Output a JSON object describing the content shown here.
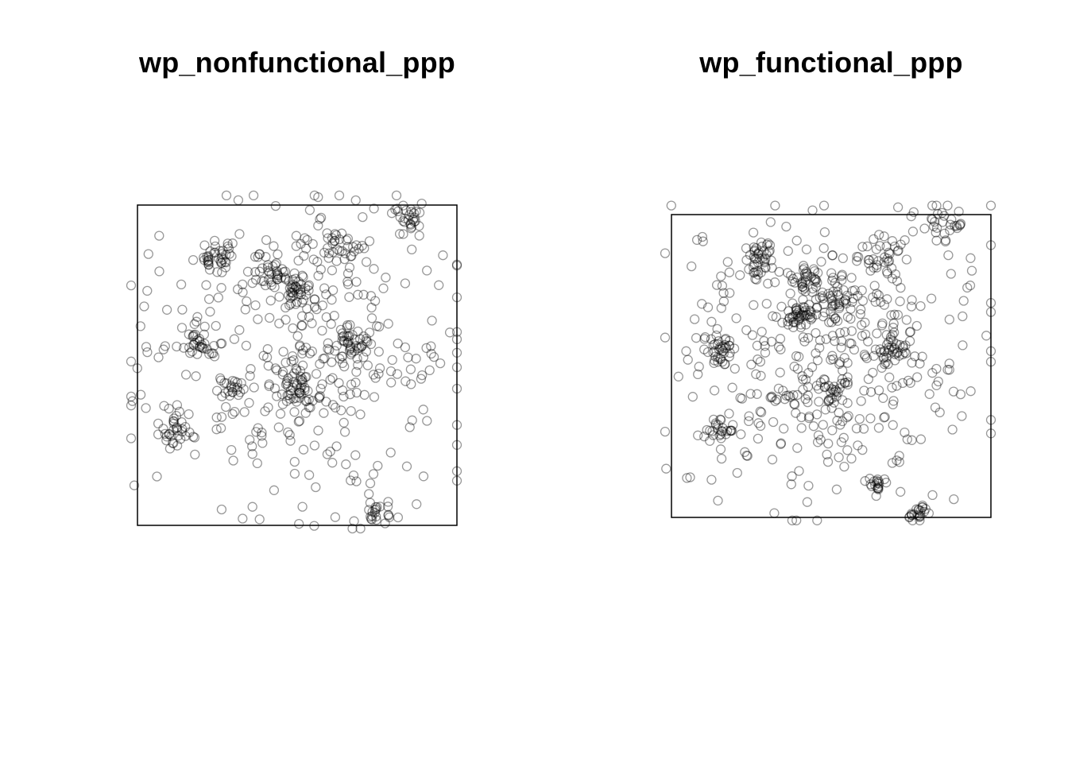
{
  "colors": {
    "background": "#ffffff",
    "point_stroke": "#000000",
    "frame": "#000000"
  },
  "chart_data": [
    {
      "type": "scatter",
      "title": "wp_nonfunctional_ppp",
      "xlabel": "",
      "ylabel": "",
      "grid": false,
      "legend": "none",
      "marker": "open-circle",
      "point_opacity": 0.4,
      "point_count_estimate": 700,
      "clusters": [
        {
          "x": 0.25,
          "y": 0.85,
          "weight": 1.0,
          "spread": 0.03
        },
        {
          "x": 0.42,
          "y": 0.79,
          "weight": 1.0,
          "spread": 0.03
        },
        {
          "x": 0.5,
          "y": 0.73,
          "weight": 1.0,
          "spread": 0.025
        },
        {
          "x": 0.63,
          "y": 0.86,
          "weight": 1.0,
          "spread": 0.035
        },
        {
          "x": 0.85,
          "y": 0.96,
          "weight": 0.8,
          "spread": 0.03
        },
        {
          "x": 0.68,
          "y": 0.57,
          "weight": 1.0,
          "spread": 0.03
        },
        {
          "x": 0.49,
          "y": 0.42,
          "weight": 1.2,
          "spread": 0.03
        },
        {
          "x": 0.12,
          "y": 0.3,
          "weight": 0.9,
          "spread": 0.025
        },
        {
          "x": 0.29,
          "y": 0.43,
          "weight": 0.6,
          "spread": 0.02
        },
        {
          "x": 0.76,
          "y": 0.04,
          "weight": 0.6,
          "spread": 0.02
        },
        {
          "x": 0.19,
          "y": 0.57,
          "weight": 0.6,
          "spread": 0.02
        }
      ]
    },
    {
      "type": "scatter",
      "title": "wp_functional_ppp",
      "xlabel": "",
      "ylabel": "",
      "grid": false,
      "legend": "none",
      "marker": "open-circle",
      "point_opacity": 0.4,
      "point_count_estimate": 750,
      "clusters": [
        {
          "x": 0.27,
          "y": 0.85,
          "weight": 1.1,
          "spread": 0.03
        },
        {
          "x": 0.44,
          "y": 0.78,
          "weight": 1.0,
          "spread": 0.03
        },
        {
          "x": 0.51,
          "y": 0.71,
          "weight": 1.2,
          "spread": 0.035
        },
        {
          "x": 0.39,
          "y": 0.67,
          "weight": 1.0,
          "spread": 0.025
        },
        {
          "x": 0.14,
          "y": 0.56,
          "weight": 1.0,
          "spread": 0.025
        },
        {
          "x": 0.7,
          "y": 0.55,
          "weight": 1.0,
          "spread": 0.03
        },
        {
          "x": 0.5,
          "y": 0.41,
          "weight": 0.9,
          "spread": 0.03
        },
        {
          "x": 0.66,
          "y": 0.87,
          "weight": 0.9,
          "spread": 0.035
        },
        {
          "x": 0.85,
          "y": 0.96,
          "weight": 0.7,
          "spread": 0.03
        },
        {
          "x": 0.15,
          "y": 0.29,
          "weight": 0.8,
          "spread": 0.025
        },
        {
          "x": 0.78,
          "y": 0.01,
          "weight": 0.6,
          "spread": 0.02
        },
        {
          "x": 0.65,
          "y": 0.1,
          "weight": 0.5,
          "spread": 0.02
        }
      ]
    }
  ]
}
